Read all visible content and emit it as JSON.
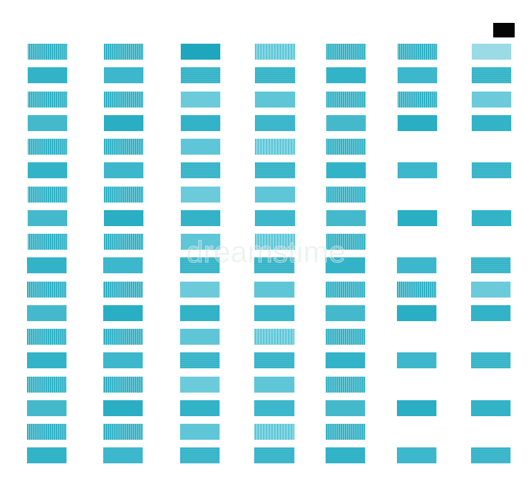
{
  "watermark": "dreamstime"
}
